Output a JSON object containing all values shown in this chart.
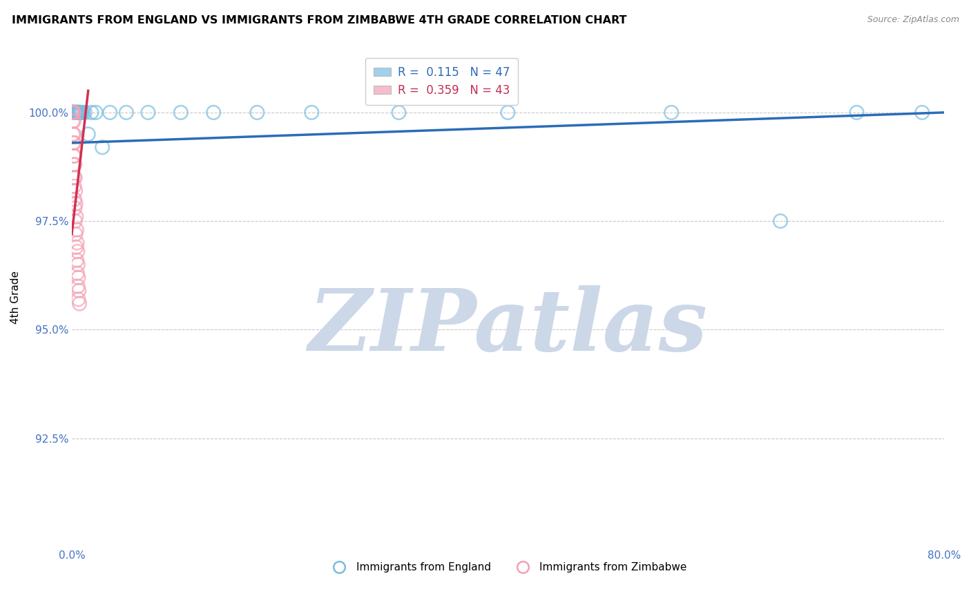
{
  "title": "IMMIGRANTS FROM ENGLAND VS IMMIGRANTS FROM ZIMBABWE 4TH GRADE CORRELATION CHART",
  "source": "Source: ZipAtlas.com",
  "ylabel": "4th Grade",
  "xlim": [
    0.0,
    80.0
  ],
  "ylim": [
    90.0,
    101.5
  ],
  "yticks": [
    100.0,
    97.5,
    95.0,
    92.5
  ],
  "ytick_labels": [
    "100.0%",
    "97.5%",
    "95.0%",
    "92.5%"
  ],
  "legend_R_blue": "0.115",
  "legend_N_blue": "47",
  "legend_R_pink": "0.359",
  "legend_N_pink": "43",
  "blue_color": "#7bbde0",
  "pink_color": "#f4a0b5",
  "trend_blue_color": "#2b6cb8",
  "trend_pink_color": "#d03050",
  "watermark_color": "#ccd8e8",
  "eng_x": [
    0.05,
    0.08,
    0.1,
    0.12,
    0.15,
    0.18,
    0.2,
    0.22,
    0.25,
    0.28,
    0.3,
    0.32,
    0.35,
    0.38,
    0.4,
    0.42,
    0.45,
    0.48,
    0.5,
    0.52,
    0.55,
    0.58,
    0.6,
    0.65,
    0.7,
    0.75,
    0.8,
    0.9,
    1.0,
    1.2,
    1.5,
    1.8,
    2.2,
    2.8,
    3.5,
    5.0,
    7.0,
    10.0,
    13.0,
    17.0,
    22.0,
    30.0,
    40.0,
    55.0,
    65.0,
    72.0,
    78.0
  ],
  "eng_y": [
    100.0,
    100.0,
    100.0,
    100.0,
    100.0,
    100.0,
    100.0,
    100.0,
    100.0,
    100.0,
    100.0,
    100.0,
    100.0,
    100.0,
    100.0,
    100.0,
    100.0,
    100.0,
    100.0,
    100.0,
    100.0,
    100.0,
    100.0,
    100.0,
    100.0,
    100.0,
    100.0,
    100.0,
    100.0,
    100.0,
    99.5,
    100.0,
    100.0,
    99.2,
    100.0,
    100.0,
    100.0,
    100.0,
    100.0,
    100.0,
    100.0,
    100.0,
    100.0,
    100.0,
    97.5,
    100.0,
    100.0
  ],
  "zim_x": [
    0.02,
    0.03,
    0.05,
    0.06,
    0.07,
    0.08,
    0.1,
    0.12,
    0.14,
    0.16,
    0.18,
    0.2,
    0.22,
    0.25,
    0.28,
    0.3,
    0.33,
    0.36,
    0.4,
    0.44,
    0.48,
    0.52,
    0.56,
    0.6,
    0.65,
    0.7,
    0.05,
    0.08,
    0.1,
    0.12,
    0.15,
    0.18,
    0.2,
    0.22,
    0.25,
    0.28,
    0.3,
    0.35,
    0.4,
    0.45,
    0.5,
    0.55,
    0.6
  ],
  "zim_y": [
    100.0,
    100.0,
    100.0,
    100.0,
    100.0,
    100.0,
    100.0,
    100.0,
    100.0,
    100.0,
    99.8,
    99.5,
    99.3,
    99.0,
    98.8,
    98.5,
    98.2,
    97.9,
    97.6,
    97.3,
    97.0,
    96.8,
    96.5,
    96.2,
    95.9,
    95.6,
    100.0,
    99.8,
    99.5,
    99.3,
    99.0,
    98.8,
    98.5,
    98.3,
    98.0,
    97.8,
    97.5,
    97.2,
    96.9,
    96.6,
    96.3,
    96.0,
    95.7
  ],
  "trend_blue_x0": 0.0,
  "trend_blue_x1": 80.0,
  "trend_blue_y0": 99.3,
  "trend_blue_y1": 100.0,
  "trend_pink_x0": 0.0,
  "trend_pink_x1": 1.5,
  "trend_pink_y0": 97.2,
  "trend_pink_y1": 100.5
}
